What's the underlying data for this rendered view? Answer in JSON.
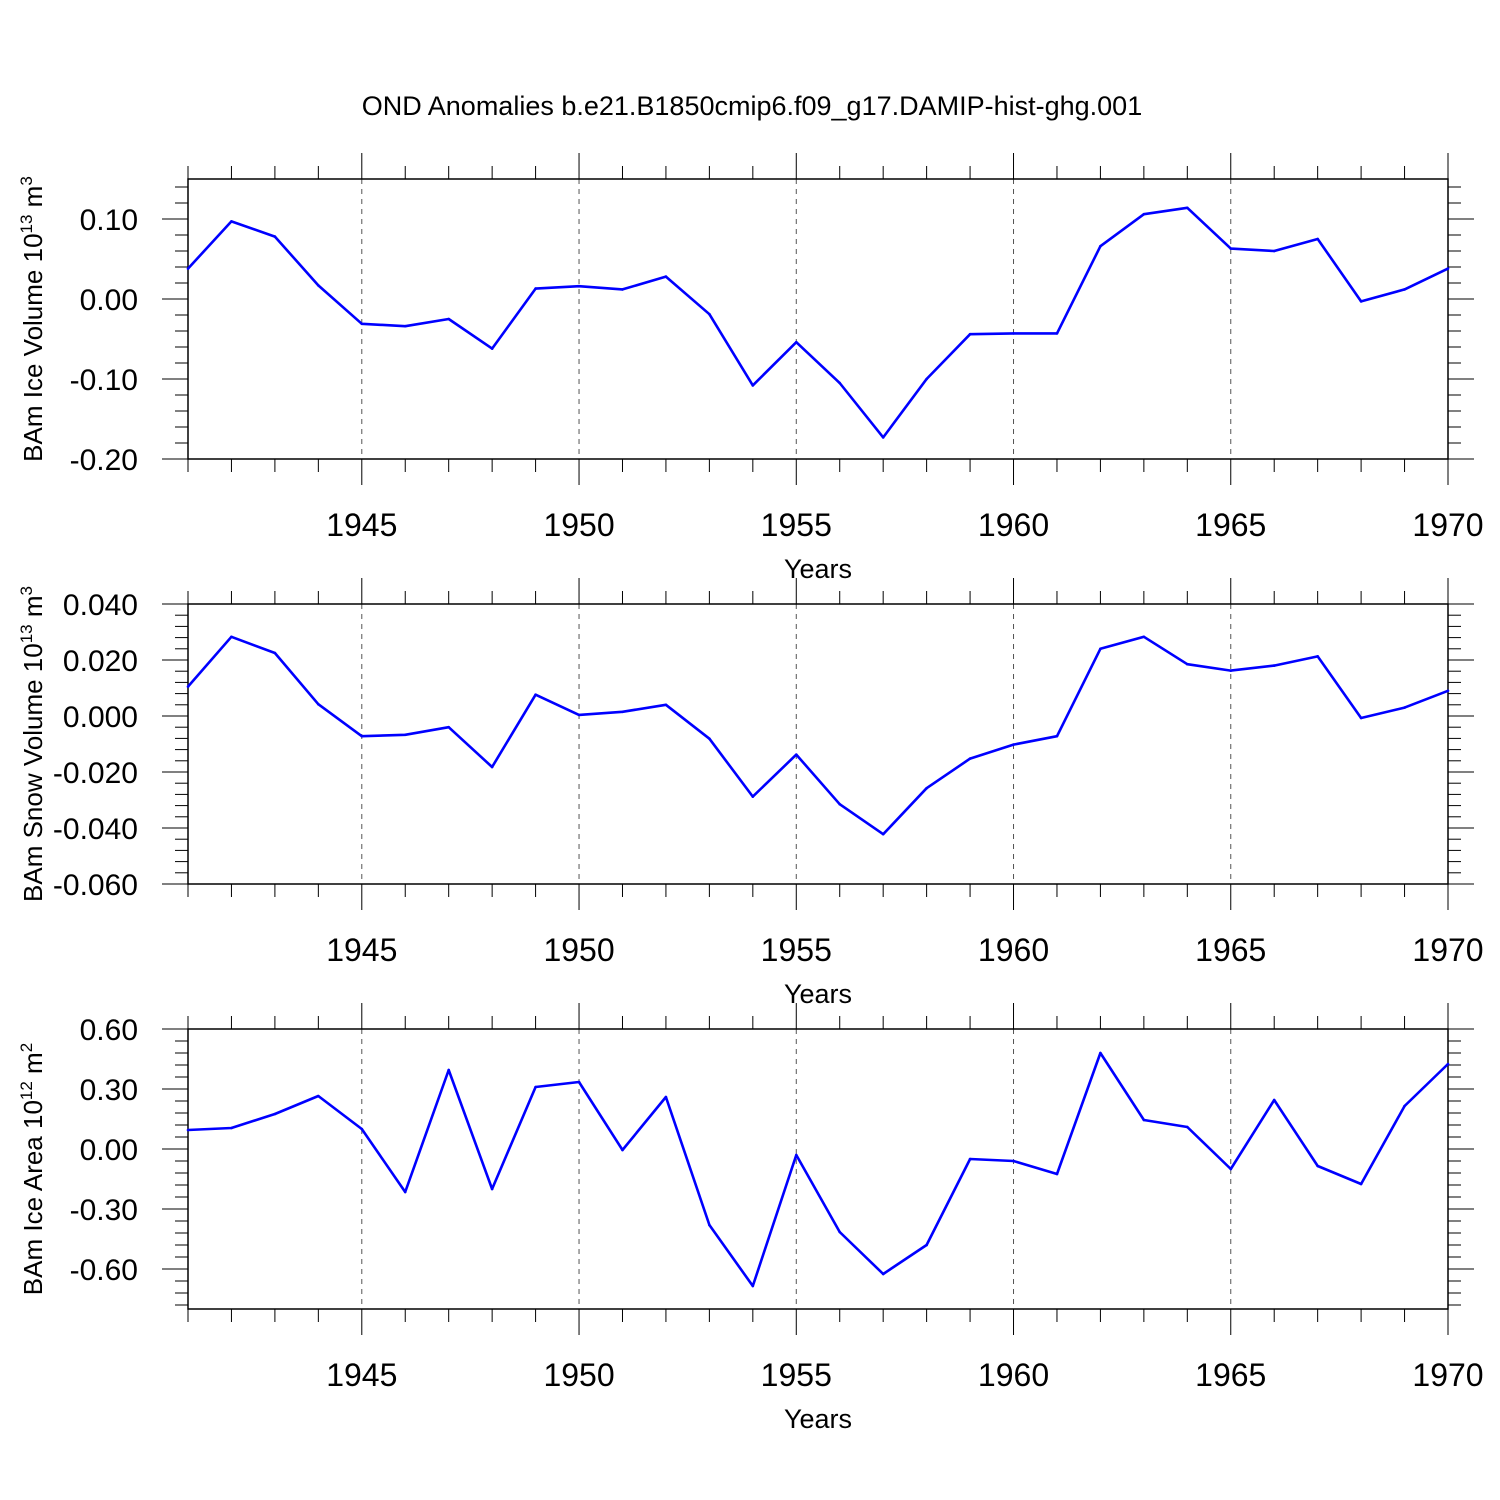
{
  "title": "OND Anomalies b.e21.B1850cmip6.f09_g17.DAMIP-hist-ghg.001",
  "line_color": "#0000ff",
  "chart_data": [
    {
      "type": "line",
      "ylabel_main": "BAm Ice Volume 10",
      "ylabel_exp": "13",
      "ylabel_unit": " m",
      "ylabel_unit_exp": "3",
      "xlabel": "Years",
      "xlim": [
        1941,
        1970
      ],
      "ylim": [
        -0.2,
        0.15
      ],
      "xticks": [
        1945,
        1950,
        1955,
        1960,
        1965,
        1970
      ],
      "xtick_labels": [
        "1945",
        "1950",
        "1955",
        "1960",
        "1965",
        "1970"
      ],
      "yticks": [
        0.1,
        0.0,
        -0.1,
        -0.2
      ],
      "ytick_labels": [
        "0.10",
        "0.00",
        "-0.10",
        "-0.20"
      ],
      "grid": "dashed vertical lines at major x ticks",
      "x": [
        1941,
        1942,
        1943,
        1944,
        1945,
        1946,
        1947,
        1948,
        1949,
        1950,
        1951,
        1952,
        1953,
        1954,
        1955,
        1956,
        1957,
        1958,
        1959,
        1960,
        1961,
        1962,
        1963,
        1964,
        1965,
        1966,
        1967,
        1968,
        1969,
        1970
      ],
      "series": [
        {
          "values": [
            0.038,
            0.097,
            0.078,
            0.017,
            -0.031,
            -0.034,
            -0.025,
            -0.062,
            0.013,
            0.016,
            0.012,
            0.028,
            -0.019,
            -0.108,
            -0.054,
            -0.105,
            -0.173,
            -0.1,
            -0.044,
            -0.043,
            -0.043,
            0.066,
            0.106,
            0.114,
            0.063,
            0.06,
            0.075,
            -0.003,
            0.012,
            0.038
          ]
        }
      ]
    },
    {
      "type": "line",
      "ylabel_main": "BAm Snow Volume 10",
      "ylabel_exp": "13",
      "ylabel_unit": " m",
      "ylabel_unit_exp": "3",
      "xlabel": "Years",
      "xlim": [
        1941,
        1970
      ],
      "ylim": [
        -0.06,
        0.04
      ],
      "xticks": [
        1945,
        1950,
        1955,
        1960,
        1965,
        1970
      ],
      "xtick_labels": [
        "1945",
        "1950",
        "1955",
        "1960",
        "1965",
        "1970"
      ],
      "yticks": [
        0.04,
        0.02,
        0.0,
        -0.02,
        -0.04,
        -0.06
      ],
      "ytick_labels": [
        "0.040",
        "0.020",
        "0.000",
        "-0.020",
        "-0.040",
        "-0.060"
      ],
      "grid": "dashed vertical lines at major x ticks",
      "x": [
        1941,
        1942,
        1943,
        1944,
        1945,
        1946,
        1947,
        1948,
        1949,
        1950,
        1951,
        1952,
        1953,
        1954,
        1955,
        1956,
        1957,
        1958,
        1959,
        1960,
        1961,
        1962,
        1963,
        1964,
        1965,
        1966,
        1967,
        1968,
        1969,
        1970
      ],
      "series": [
        {
          "values": [
            0.0105,
            0.0283,
            0.0225,
            0.0042,
            -0.0072,
            -0.0067,
            -0.004,
            -0.0182,
            0.0076,
            0.0004,
            0.0015,
            0.004,
            -0.0081,
            -0.0288,
            -0.0138,
            -0.0315,
            -0.0422,
            -0.0258,
            -0.0152,
            -0.0102,
            -0.0072,
            0.024,
            0.0283,
            0.0185,
            0.0162,
            0.018,
            0.0213,
            -0.0007,
            0.003,
            0.009
          ]
        }
      ]
    },
    {
      "type": "line",
      "ylabel_main": "BAm Ice Area 10",
      "ylabel_exp": "12",
      "ylabel_unit": " m",
      "ylabel_unit_exp": "2",
      "xlabel": "Years",
      "xlim": [
        1941,
        1970
      ],
      "ylim": [
        -0.8,
        0.6
      ],
      "xticks": [
        1945,
        1950,
        1955,
        1960,
        1965,
        1970
      ],
      "xtick_labels": [
        "1945",
        "1950",
        "1955",
        "1960",
        "1965",
        "1970"
      ],
      "yticks": [
        0.6,
        0.3,
        0.0,
        -0.3,
        -0.6
      ],
      "ytick_labels": [
        "0.60",
        "0.30",
        "0.00",
        "-0.30",
        "-0.60"
      ],
      "grid": "dashed vertical lines at major x ticks",
      "x": [
        1941,
        1942,
        1943,
        1944,
        1945,
        1946,
        1947,
        1948,
        1949,
        1950,
        1951,
        1952,
        1953,
        1954,
        1955,
        1956,
        1957,
        1958,
        1959,
        1960,
        1961,
        1962,
        1963,
        1964,
        1965,
        1966,
        1967,
        1968,
        1969,
        1970
      ],
      "series": [
        {
          "values": [
            0.095,
            0.105,
            0.175,
            0.265,
            0.1,
            -0.215,
            0.395,
            -0.2,
            0.31,
            0.335,
            -0.005,
            0.26,
            -0.38,
            -0.685,
            -0.03,
            -0.415,
            -0.625,
            -0.48,
            -0.05,
            -0.06,
            -0.125,
            0.48,
            0.145,
            0.11,
            -0.1,
            0.245,
            -0.085,
            -0.175,
            0.215,
            0.425
          ]
        }
      ]
    }
  ]
}
